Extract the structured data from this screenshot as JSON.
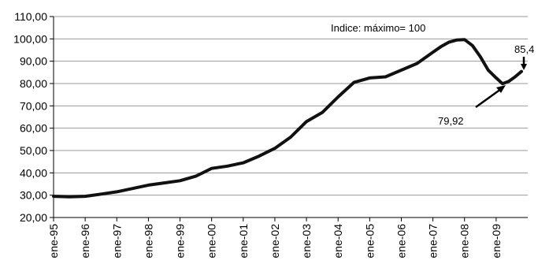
{
  "chart_data": {
    "type": "line",
    "title": "",
    "xlabel": "",
    "ylabel": "",
    "ylim": [
      20,
      110
    ],
    "y_ticks": [
      "20,00",
      "30,00",
      "40,00",
      "50,00",
      "60,00",
      "70,00",
      "80,00",
      "90,00",
      "100,00",
      "110,00"
    ],
    "x_ticks": [
      "ene-95",
      "ene-96",
      "ene-97",
      "ene-98",
      "ene-99",
      "ene-00",
      "ene-01",
      "ene-02",
      "ene-03",
      "ene-04",
      "ene-05",
      "ene-06",
      "ene-07",
      "ene-08",
      "ene-09"
    ],
    "grid": true,
    "legend": "none",
    "note": "Indice: máximo= 100",
    "annotations": [
      {
        "text": "85,4",
        "x": 2009.75,
        "y": 85.4
      },
      {
        "text": "79,92",
        "x": 2009.2,
        "y": 79.92
      }
    ],
    "series": [
      {
        "name": "",
        "color": "#111111",
        "x": [
          1995.0,
          1995.5,
          1996.0,
          1996.5,
          1997.0,
          1997.5,
          1998.0,
          1998.5,
          1999.0,
          1999.5,
          2000.0,
          2000.5,
          2001.0,
          2001.5,
          2002.0,
          2002.5,
          2003.0,
          2003.5,
          2004.0,
          2004.5,
          2005.0,
          2005.5,
          2006.0,
          2006.5,
          2007.0,
          2007.25,
          2007.5,
          2007.75,
          2008.0,
          2008.25,
          2008.5,
          2008.75,
          2009.0,
          2009.2,
          2009.4,
          2009.6,
          2009.8
        ],
        "y": [
          29.5,
          29.3,
          29.5,
          30.5,
          31.5,
          33.0,
          34.5,
          35.5,
          36.5,
          38.5,
          42.0,
          43.0,
          44.5,
          47.5,
          51.0,
          56.0,
          63.0,
          67.0,
          74.0,
          80.5,
          82.5,
          83.0,
          86.0,
          89.0,
          94.0,
          96.5,
          98.5,
          99.5,
          99.7,
          97.0,
          92.0,
          86.0,
          82.5,
          79.92,
          81.0,
          83.0,
          85.4
        ]
      }
    ]
  }
}
